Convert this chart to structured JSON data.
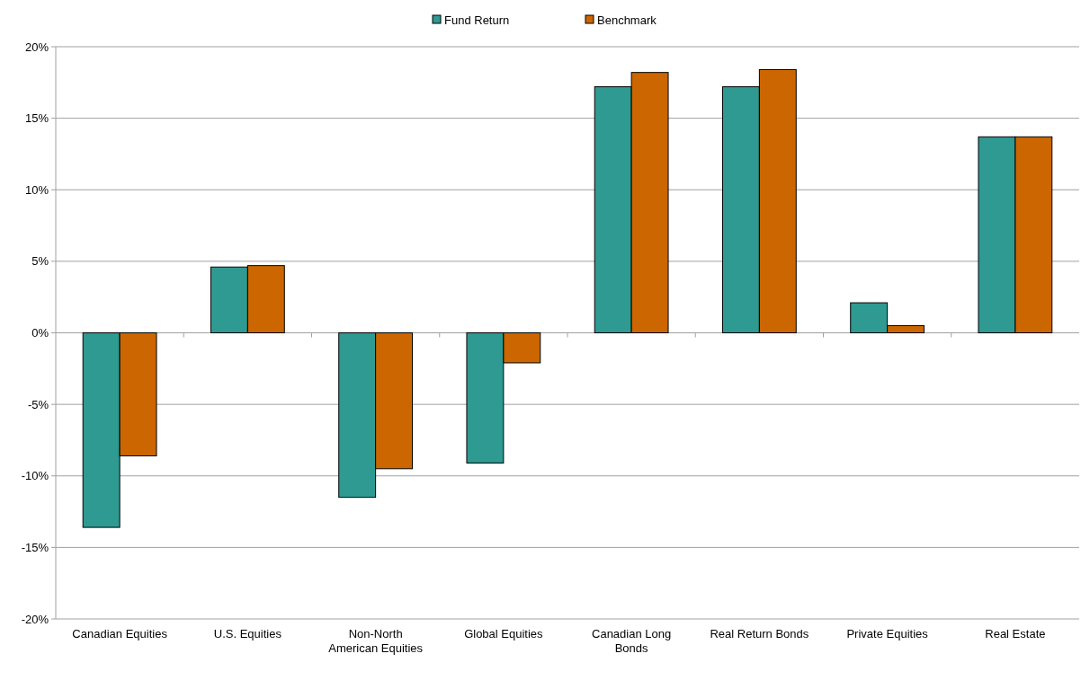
{
  "chart_data": {
    "type": "bar",
    "categories": [
      "Canadian Equities",
      "U.S. Equities",
      "Non-North American Equities",
      "Global Equities",
      "Canadian Long Bonds",
      "Real Return Bonds",
      "Private Equities",
      "Real Estate"
    ],
    "series": [
      {
        "name": "Fund Return",
        "color": "#2e9a92",
        "values": [
          -13.6,
          4.6,
          -11.5,
          -9.1,
          17.2,
          17.2,
          2.1,
          13.7
        ]
      },
      {
        "name": "Benchmark",
        "color": "#cc6600",
        "values": [
          -8.6,
          4.7,
          -9.5,
          -2.1,
          18.2,
          18.4,
          0.5,
          13.7
        ]
      }
    ],
    "ylim": [
      -20,
      20
    ],
    "yticks": [
      {
        "value": -20,
        "label": "-20%"
      },
      {
        "value": -15,
        "label": "-15%"
      },
      {
        "value": -10,
        "label": "-10%"
      },
      {
        "value": -5,
        "label": "-5%"
      },
      {
        "value": 0,
        "label": "0%"
      },
      {
        "value": 5,
        "label": "5%"
      },
      {
        "value": 10,
        "label": "10%"
      },
      {
        "value": 15,
        "label": "15%"
      },
      {
        "value": 20,
        "label": "20%"
      }
    ],
    "grid": "y",
    "legend": "top"
  }
}
